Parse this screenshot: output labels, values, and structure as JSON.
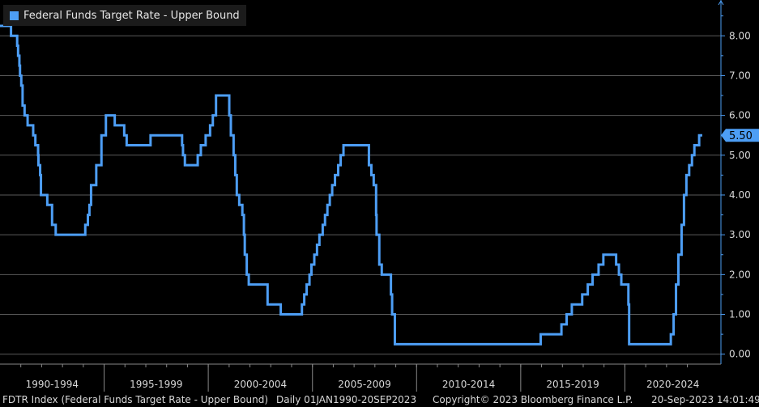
{
  "chart_data": {
    "type": "line",
    "title": "",
    "series": [
      {
        "name": "Federal Funds Target Rate - Upper Bound",
        "color": "#4d9ef5",
        "points": [
          [
            "1990-01-01",
            8.25
          ],
          [
            "1990-07-13",
            8.0
          ],
          [
            "1990-10-29",
            7.75
          ],
          [
            "1990-11-14",
            7.5
          ],
          [
            "1990-12-07",
            7.25
          ],
          [
            "1990-12-18",
            7.0
          ],
          [
            "1991-01-09",
            6.75
          ],
          [
            "1991-02-01",
            6.25
          ],
          [
            "1991-03-08",
            6.0
          ],
          [
            "1991-04-30",
            5.75
          ],
          [
            "1991-08-06",
            5.5
          ],
          [
            "1991-09-13",
            5.25
          ],
          [
            "1991-10-31",
            5.0
          ],
          [
            "1991-11-06",
            4.75
          ],
          [
            "1991-12-06",
            4.5
          ],
          [
            "1991-12-20",
            4.0
          ],
          [
            "1992-04-09",
            3.75
          ],
          [
            "1992-07-02",
            3.25
          ],
          [
            "1992-09-04",
            3.0
          ],
          [
            "1994-02-04",
            3.25
          ],
          [
            "1994-03-22",
            3.5
          ],
          [
            "1994-04-18",
            3.75
          ],
          [
            "1994-05-17",
            4.25
          ],
          [
            "1994-08-16",
            4.75
          ],
          [
            "1994-11-15",
            5.5
          ],
          [
            "1995-02-01",
            6.0
          ],
          [
            "1995-07-06",
            5.75
          ],
          [
            "1995-12-19",
            5.5
          ],
          [
            "1996-01-31",
            5.25
          ],
          [
            "1997-03-25",
            5.5
          ],
          [
            "1998-09-29",
            5.25
          ],
          [
            "1998-10-15",
            5.0
          ],
          [
            "1998-11-17",
            4.75
          ],
          [
            "1999-06-30",
            5.0
          ],
          [
            "1999-08-24",
            5.25
          ],
          [
            "1999-11-16",
            5.5
          ],
          [
            "2000-02-02",
            5.75
          ],
          [
            "2000-03-21",
            6.0
          ],
          [
            "2000-05-16",
            6.5
          ],
          [
            "2001-01-03",
            6.0
          ],
          [
            "2001-01-31",
            5.5
          ],
          [
            "2001-03-20",
            5.0
          ],
          [
            "2001-04-18",
            4.5
          ],
          [
            "2001-05-15",
            4.0
          ],
          [
            "2001-06-27",
            3.75
          ],
          [
            "2001-08-21",
            3.5
          ],
          [
            "2001-09-17",
            3.0
          ],
          [
            "2001-10-02",
            2.5
          ],
          [
            "2001-11-06",
            2.0
          ],
          [
            "2001-12-11",
            1.75
          ],
          [
            "2002-11-06",
            1.25
          ],
          [
            "2003-06-25",
            1.0
          ],
          [
            "2004-06-30",
            1.25
          ],
          [
            "2004-08-10",
            1.5
          ],
          [
            "2004-09-21",
            1.75
          ],
          [
            "2004-11-10",
            2.0
          ],
          [
            "2004-12-14",
            2.25
          ],
          [
            "2005-02-02",
            2.5
          ],
          [
            "2005-03-22",
            2.75
          ],
          [
            "2005-05-03",
            3.0
          ],
          [
            "2005-06-30",
            3.25
          ],
          [
            "2005-08-09",
            3.5
          ],
          [
            "2005-09-20",
            3.75
          ],
          [
            "2005-11-01",
            4.0
          ],
          [
            "2005-12-13",
            4.25
          ],
          [
            "2006-01-31",
            4.5
          ],
          [
            "2006-03-28",
            4.75
          ],
          [
            "2006-05-10",
            5.0
          ],
          [
            "2006-06-29",
            5.25
          ],
          [
            "2007-09-18",
            4.75
          ],
          [
            "2007-10-31",
            4.5
          ],
          [
            "2007-12-11",
            4.25
          ],
          [
            "2008-01-22",
            3.5
          ],
          [
            "2008-01-30",
            3.0
          ],
          [
            "2008-03-18",
            2.25
          ],
          [
            "2008-04-30",
            2.0
          ],
          [
            "2008-10-08",
            1.5
          ],
          [
            "2008-10-29",
            1.0
          ],
          [
            "2008-12-16",
            0.25
          ],
          [
            "2015-12-17",
            0.5
          ],
          [
            "2016-12-15",
            0.75
          ],
          [
            "2017-03-16",
            1.0
          ],
          [
            "2017-06-15",
            1.25
          ],
          [
            "2017-12-14",
            1.5
          ],
          [
            "2018-03-22",
            1.75
          ],
          [
            "2018-06-14",
            2.0
          ],
          [
            "2018-09-27",
            2.25
          ],
          [
            "2018-12-20",
            2.5
          ],
          [
            "2019-08-01",
            2.25
          ],
          [
            "2019-09-19",
            2.0
          ],
          [
            "2019-10-31",
            1.75
          ],
          [
            "2020-03-03",
            1.25
          ],
          [
            "2020-03-16",
            0.25
          ],
          [
            "2022-03-17",
            0.5
          ],
          [
            "2022-05-05",
            1.0
          ],
          [
            "2022-06-16",
            1.75
          ],
          [
            "2022-07-28",
            2.5
          ],
          [
            "2022-09-22",
            3.25
          ],
          [
            "2022-11-03",
            4.0
          ],
          [
            "2022-12-15",
            4.5
          ],
          [
            "2023-02-02",
            4.75
          ],
          [
            "2023-03-23",
            5.0
          ],
          [
            "2023-05-04",
            5.25
          ],
          [
            "2023-07-27",
            5.5
          ],
          [
            "2023-09-20",
            5.5
          ]
        ]
      }
    ],
    "last_value_label": "5.50",
    "ylim": [
      -0.25,
      8.9
    ],
    "xlim": [
      "1990-01-01",
      "2023-09-20"
    ],
    "y_ticks": [
      "0.00",
      "1.00",
      "2.00",
      "3.00",
      "4.00",
      "5.00",
      "6.00",
      "7.00",
      "8.00"
    ],
    "x_period_labels": [
      "1990-1994",
      "1995-1999",
      "2000-2004",
      "2005-2009",
      "2010-2014",
      "2015-2019",
      "2020-2024"
    ],
    "grid": true,
    "legend_position": "top-left",
    "colors": {
      "background": "#000000",
      "line": "#4d9ef5",
      "grid": "#5a5a5a",
      "axis": "#4d9ef5"
    }
  },
  "footer": {
    "index": "FDTR Index (Federal Funds Target Rate - Upper Bound)",
    "range": "Daily 01JAN1990-20SEP2023",
    "copyright": "Copyright© 2023 Bloomberg Finance L.P.",
    "timestamp": "20-Sep-2023 14:01:49"
  }
}
